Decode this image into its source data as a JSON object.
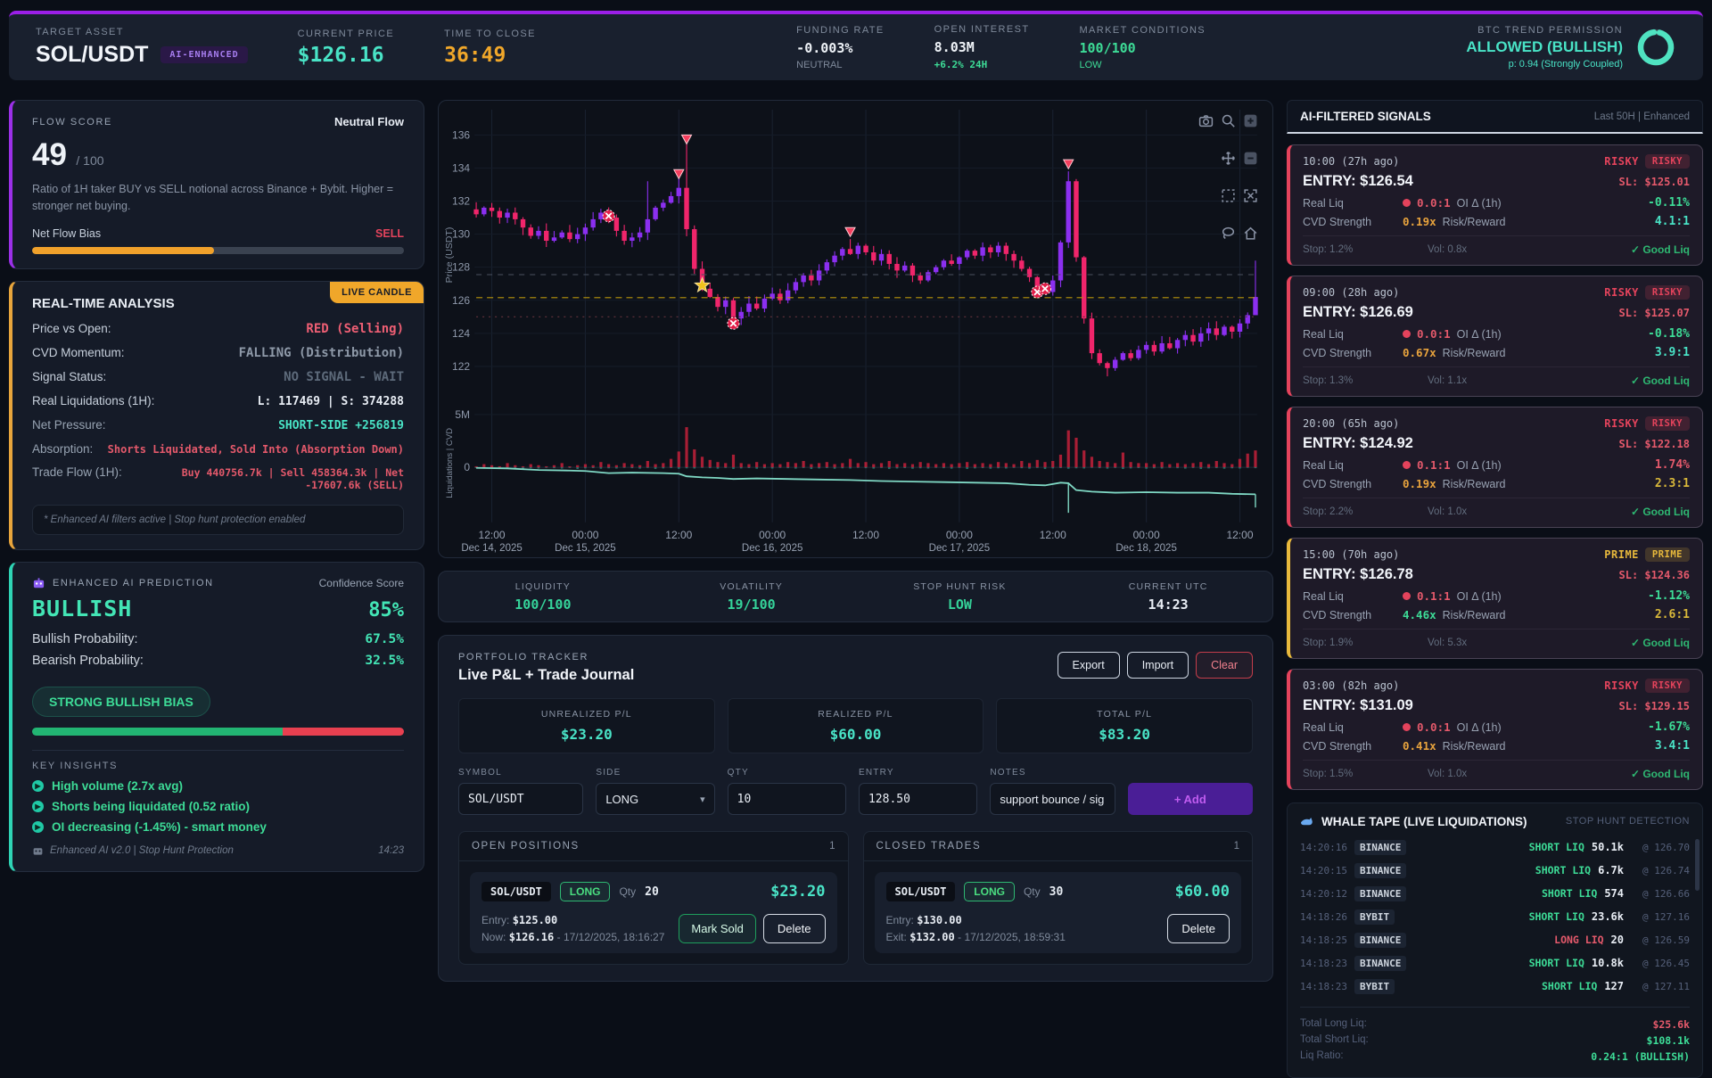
{
  "header": {
    "target": {
      "label": "TARGET ASSET",
      "value": "SOL/USDT",
      "badge": "AI-ENHANCED"
    },
    "price": {
      "label": "CURRENT PRICE",
      "value": "$126.16"
    },
    "close_timer": {
      "label": "TIME TO CLOSE",
      "value": "36:49"
    },
    "funding": {
      "label": "FUNDING RATE",
      "value": "-0.003%",
      "sub": "NEUTRAL"
    },
    "oi": {
      "label": "OPEN INTEREST",
      "value": "8.03M",
      "sub": "+6.2% 24H"
    },
    "market": {
      "label": "MARKET CONDITIONS",
      "value": "100/100",
      "sub": "LOW"
    },
    "btc": {
      "label": "BTC TREND PERMISSION",
      "value": "ALLOWED (BULLISH)",
      "sub": "p: 0.94 (Strongly Coupled)",
      "gauge_pct": 94,
      "gauge_color": "#4fe3c1"
    }
  },
  "flow": {
    "title": "FLOW SCORE",
    "status": "Neutral Flow",
    "score": "49",
    "score_max": "/ 100",
    "desc": "Ratio of 1H taker BUY vs SELL notional across Binance + Bybit. Higher = stronger net buying.",
    "bias_label": "Net Flow Bias",
    "bias_value": "SELL",
    "bar_pct": 49,
    "bar_color": "#f0a12b"
  },
  "realtime": {
    "title": "REAL-TIME ANALYSIS",
    "badge": "LIVE CANDLE",
    "rows": [
      {
        "label": "Price vs Open:",
        "value": "RED (Selling)",
        "lc": "#c7d0dc",
        "vc": "#ef5f74",
        "fs": "14px"
      },
      {
        "label": "CVD Momentum:",
        "value": "FALLING (Distribution)",
        "lc": "#c7d0dc",
        "vc": "#8e99a8",
        "fs": "14px"
      },
      {
        "label": "Signal Status:",
        "value": "NO SIGNAL - WAIT",
        "lc": "#c7d0dc",
        "vc": "#5d6a7a",
        "fs": "14px"
      },
      {
        "label": "Real Liquidations (1H):",
        "value": "L: 117469 | S: 374288",
        "lc": "#c7d0dc",
        "vc": "#e8edf4",
        "fs": "13px"
      },
      {
        "label": "Net Pressure:",
        "value": "SHORT-SIDE +256819",
        "lc": "#97a3b2",
        "vc": "#49e3c6",
        "fs": "13px"
      },
      {
        "label": "Absorption:",
        "value": "Shorts Liquidated, Sold Into (Absorption Down)",
        "lc": "#97a3b2",
        "vc": "#e4596b",
        "fs": "12px"
      },
      {
        "label": "Trade Flow (1H):",
        "value": "Buy 440756.7k | Sell 458364.3k | Net -17607.6k (SELL)",
        "lc": "#97a3b2",
        "vc": "#e4596b",
        "fs": "11.5px"
      }
    ],
    "footnote": "* Enhanced AI filters active | Stop hunt protection enabled"
  },
  "prediction": {
    "title": "ENHANCED AI PREDICTION",
    "conf_label": "Confidence Score",
    "direction": "BULLISH",
    "confidence": "85%",
    "probs": [
      {
        "label": "Bullish Probability:",
        "value": "67.5%"
      },
      {
        "label": "Bearish Probability:",
        "value": "32.5%"
      }
    ],
    "pill": "STRONG BULLISH BIAS",
    "bull_pct": 67.5,
    "insights_title": "KEY INSIGHTS",
    "insights": [
      {
        "text": "High volume (2.7x avg)"
      },
      {
        "text": "Shorts being liquidated (0.52 ratio)"
      },
      {
        "text": "OI decreasing (-1.45%) - smart money"
      }
    ],
    "footer": "Enhanced AI v2.0 | Stop Hunt Protection",
    "time": "14:23"
  },
  "stats": {
    "items": [
      {
        "label": "LIQUIDITY",
        "value": "100/100",
        "color": "#35d49a"
      },
      {
        "label": "VOLATILITY",
        "value": "19/100",
        "color": "#35d49a"
      },
      {
        "label": "STOP HUNT RISK",
        "value": "LOW",
        "color": "#35d49a"
      },
      {
        "label": "CURRENT UTC",
        "value": "14:23",
        "color": "#e8edf4"
      }
    ]
  },
  "portfolio": {
    "kicker": "PORTFOLIO TRACKER",
    "title": "Live P&L + Trade Journal",
    "buttons": {
      "export": "Export",
      "import": "Import",
      "clear": "Clear"
    },
    "pl_boxes": [
      {
        "label": "UNREALIZED P/L",
        "value": "$23.20"
      },
      {
        "label": "REALIZED P/L",
        "value": "$60.00"
      },
      {
        "label": "TOTAL P/L",
        "value": "$83.20"
      }
    ],
    "form": {
      "symbol_label": "SYMBOL",
      "symbol": "SOL/USDT",
      "side_label": "SIDE",
      "side": "LONG",
      "qty_label": "QTY",
      "qty": "10",
      "entry_label": "ENTRY",
      "entry": "128.50",
      "notes_label": "NOTES",
      "notes": "support bounce / sig",
      "add": "+ Add"
    },
    "open": {
      "title": "OPEN POSITIONS",
      "count": "1",
      "symbol": "SOL/USDT",
      "side": "LONG",
      "qty_label": "Qty",
      "qty": "20",
      "pnl": "$23.20",
      "entry_label": "Entry:",
      "entry": "$125.00",
      "now_label": "Now:",
      "now": "$126.16",
      "meta": "- 17/12/2025, 18:16:27",
      "mark_sold": "Mark Sold",
      "delete": "Delete"
    },
    "closed": {
      "title": "CLOSED TRADES",
      "count": "1",
      "symbol": "SOL/USDT",
      "side": "LONG",
      "qty_label": "Qty",
      "qty": "30",
      "pnl": "$60.00",
      "entry_label": "Entry:",
      "entry": "$130.00",
      "exit_label": "Exit:",
      "exit": "$132.00",
      "meta": "- 17/12/2025, 18:59:31",
      "delete": "Delete"
    }
  },
  "signals": {
    "title": "AI-FILTERED SIGNALS",
    "range": "Last 50H | Enhanced",
    "labels": {
      "real_liq": "Real Liq",
      "oi": "OI Δ (1h)",
      "cvd": "CVD Strength",
      "rr": "Risk/Reward"
    },
    "cards": [
      {
        "time": "10:00 (27h ago)",
        "tier": "RISKY",
        "tier_color": "#e4435c",
        "tier_bg": "rgba(228,67,92,0.18)",
        "accent": "#e4435c",
        "entry": "ENTRY: $126.54",
        "sl": "SL: $125.01",
        "rl": "0.0:1",
        "rl_color": "#e4596b",
        "oi": "-0.11%",
        "oi_color": "#3ddc97",
        "cvd": "0.19x",
        "cvd_color": "#e8a33d",
        "rr": "4.1:1",
        "rr_color": "#49e3c6",
        "stop": "Stop: 1.2%",
        "vol": "Vol: 0.8x",
        "liq": "✓ Good Liq"
      },
      {
        "time": "09:00 (28h ago)",
        "tier": "RISKY",
        "tier_color": "#e4435c",
        "tier_bg": "rgba(228,67,92,0.18)",
        "accent": "#e4435c",
        "entry": "ENTRY: $126.69",
        "sl": "SL: $125.07",
        "rl": "0.0:1",
        "rl_color": "#e4596b",
        "oi": "-0.18%",
        "oi_color": "#3ddc97",
        "cvd": "0.67x",
        "cvd_color": "#e8a33d",
        "rr": "3.9:1",
        "rr_color": "#49e3c6",
        "stop": "Stop: 1.3%",
        "vol": "Vol: 1.1x",
        "liq": "✓ Good Liq"
      },
      {
        "time": "20:00 (65h ago)",
        "tier": "RISKY",
        "tier_color": "#e4435c",
        "tier_bg": "rgba(228,67,92,0.18)",
        "accent": "#e4435c",
        "entry": "ENTRY: $124.92",
        "sl": "SL: $122.18",
        "rl": "0.1:1",
        "rl_color": "#e4596b",
        "oi": "1.74%",
        "oi_color": "#e4596b",
        "cvd": "0.19x",
        "cvd_color": "#e8a33d",
        "rr": "2.3:1",
        "rr_color": "#d9b83a",
        "stop": "Stop: 2.2%",
        "vol": "Vol: 1.0x",
        "liq": "✓ Good Liq"
      },
      {
        "time": "15:00 (70h ago)",
        "tier": "PRIME",
        "tier_color": "#e8b93c",
        "tier_bg": "rgba(232,185,60,0.18)",
        "accent": "#e8b93c",
        "entry": "ENTRY: $126.78",
        "sl": "SL: $124.36",
        "rl": "0.1:1",
        "rl_color": "#e4596b",
        "oi": "-1.12%",
        "oi_color": "#3ddc97",
        "cvd": "4.46x",
        "cvd_color": "#3ddc97",
        "rr": "2.6:1",
        "rr_color": "#d9b83a",
        "stop": "Stop: 1.9%",
        "vol": "Vol: 5.3x",
        "liq": "✓ Good Liq"
      },
      {
        "time": "03:00 (82h ago)",
        "tier": "RISKY",
        "tier_color": "#e4435c",
        "tier_bg": "rgba(228,67,92,0.18)",
        "accent": "#e4435c",
        "entry": "ENTRY: $131.09",
        "sl": "SL: $129.15",
        "rl": "0.0:1",
        "rl_color": "#e4596b",
        "oi": "-1.67%",
        "oi_color": "#3ddc97",
        "cvd": "0.41x",
        "cvd_color": "#e8a33d",
        "rr": "3.4:1",
        "rr_color": "#49e3c6",
        "stop": "Stop: 1.5%",
        "vol": "Vol: 1.0x",
        "liq": "✓ Good Liq"
      }
    ]
  },
  "whale": {
    "title": "WHALE TAPE (LIVE LIQUIDATIONS)",
    "right": "STOP HUNT DETECTION",
    "rows": [
      {
        "t": "14:20:16",
        "ex": "BINANCE",
        "side": "SHORT LIQ",
        "qty": "50.1k",
        "at": "@ 126.70",
        "sc": "#3ddc97"
      },
      {
        "t": "14:20:15",
        "ex": "BINANCE",
        "side": "SHORT LIQ",
        "qty": "6.7k",
        "at": "@ 126.74",
        "sc": "#3ddc97"
      },
      {
        "t": "14:20:12",
        "ex": "BINANCE",
        "side": "SHORT LIQ",
        "qty": "574",
        "at": "@ 126.66",
        "sc": "#3ddc97"
      },
      {
        "t": "14:18:26",
        "ex": "BYBIT",
        "side": "SHORT LIQ",
        "qty": "23.6k",
        "at": "@ 127.16",
        "sc": "#3ddc97"
      },
      {
        "t": "14:18:25",
        "ex": "BINANCE",
        "side": "LONG LIQ",
        "qty": "20",
        "at": "@ 126.59",
        "sc": "#e4596b"
      },
      {
        "t": "14:18:23",
        "ex": "BINANCE",
        "side": "SHORT LIQ",
        "qty": "10.8k",
        "at": "@ 126.45",
        "sc": "#3ddc97"
      },
      {
        "t": "14:18:23",
        "ex": "BYBIT",
        "side": "SHORT LIQ",
        "qty": "127",
        "at": "@ 127.11",
        "sc": "#3ddc97"
      }
    ],
    "totals": [
      {
        "label": "Total Long Liq:",
        "value": "$25.6k",
        "color": "#e4596b"
      },
      {
        "label": "Total Short Liq:",
        "value": "$108.1k",
        "color": "#3ddc97"
      },
      {
        "label": "Liq Ratio:",
        "value": "0.24:1 (BULLISH)",
        "color": "#3ddc97"
      }
    ]
  },
  "chart_data": {
    "type": "candlestick",
    "ylabel": "Price (USDT)",
    "y2label": "Liquidations | CVD",
    "y_ticks": [
      122,
      124,
      126,
      128,
      130,
      132,
      134,
      136
    ],
    "y2_ticks": [
      "0",
      "5M"
    ],
    "price_range": [
      120.6,
      137.2
    ],
    "y2_range": [
      -5.2,
      6.0
    ],
    "up_color": "#8b2ff0",
    "down_color": "#f0256b",
    "cvd_color": "#7fd8c4",
    "liq_color": "#b92039",
    "x_tick_labels": [
      "12:00",
      "00:00",
      "12:00",
      "00:00",
      "12:00",
      "00:00",
      "12:00",
      "00:00",
      "12:00"
    ],
    "x_tick_indices": [
      2,
      14,
      26,
      38,
      50,
      62,
      74,
      86,
      98
    ],
    "date_labels": [
      {
        "text": "Dec 14, 2025",
        "i": 2
      },
      {
        "text": "Dec 15, 2025",
        "i": 14
      },
      {
        "text": "Dec 16, 2025",
        "i": 38
      },
      {
        "text": "Dec 17, 2025",
        "i": 62
      },
      {
        "text": "Dec 18, 2025",
        "i": 86
      }
    ],
    "closes": [
      131.2,
      131.6,
      131.4,
      131.0,
      131.3,
      130.9,
      130.4,
      129.9,
      130.2,
      129.6,
      129.8,
      130.1,
      129.7,
      130.0,
      130.4,
      130.9,
      131.3,
      131.0,
      130.2,
      129.6,
      129.8,
      130.1,
      130.9,
      131.6,
      131.9,
      132.3,
      132.8,
      130.3,
      127.9,
      126.7,
      126.2,
      125.6,
      126.0,
      124.9,
      125.3,
      125.8,
      125.5,
      126.1,
      126.4,
      126.0,
      126.6,
      127.1,
      127.5,
      127.2,
      127.8,
      128.3,
      128.7,
      129.1,
      128.8,
      129.3,
      128.9,
      128.4,
      128.8,
      128.2,
      127.8,
      128.1,
      127.5,
      127.2,
      127.7,
      128.0,
      128.4,
      128.2,
      128.6,
      129.0,
      128.7,
      129.2,
      128.9,
      129.3,
      128.8,
      128.4,
      127.9,
      127.4,
      126.8,
      126.5,
      127.2,
      129.5,
      133.2,
      128.6,
      124.9,
      122.8,
      122.2,
      121.9,
      122.4,
      122.8,
      122.5,
      123.0,
      123.3,
      122.9,
      123.4,
      123.1,
      123.6,
      123.9,
      123.5,
      124.0,
      124.3,
      123.9,
      124.4,
      124.1,
      124.6,
      125.1,
      126.2
    ],
    "wick_overrides": {
      "22": [
        133.2,
        null
      ],
      "26": [
        133.6,
        null
      ],
      "27": [
        135.5,
        null
      ],
      "33": [
        null,
        124.4
      ],
      "48": [
        129.7,
        null
      ],
      "76": [
        133.8,
        null
      ],
      "81": [
        null,
        121.4
      ],
      "100": [
        128.4,
        125.3
      ]
    },
    "markers": [
      {
        "i": 17,
        "p": 131.1,
        "t": "x"
      },
      {
        "i": 26,
        "p": 133.6,
        "t": "tri"
      },
      {
        "i": 27,
        "p": 135.7,
        "t": "tri"
      },
      {
        "i": 29,
        "p": 126.9,
        "t": "star"
      },
      {
        "i": 33,
        "p": 124.6,
        "t": "x"
      },
      {
        "i": 48,
        "p": 130.1,
        "t": "tri"
      },
      {
        "i": 72,
        "p": 126.5,
        "t": "x"
      },
      {
        "i": 73,
        "p": 126.7,
        "t": "x"
      },
      {
        "i": 76,
        "p": 134.2,
        "t": "tri"
      }
    ],
    "levels": [
      {
        "price": 126.16,
        "color": "#b8960c",
        "dash": "7 5",
        "width": 1.2
      },
      {
        "price": 127.55,
        "color": "#4a5160",
        "dash": "6 6",
        "width": 1
      },
      {
        "price": 125.0,
        "color": "#66323c",
        "dash": "2 5",
        "width": 1
      }
    ],
    "liq_up": [
      0.1,
      0.3,
      0.2,
      0.1,
      0.4,
      0.2,
      0.1,
      0.3,
      0.2,
      0.1,
      0.2,
      0.4,
      0.1,
      0.2,
      0.3,
      0.2,
      0.5,
      0.3,
      0.2,
      0.4,
      0.3,
      0.2,
      0.6,
      0.3,
      0.4,
      0.8,
      1.5,
      3.8,
      1.7,
      1.0,
      0.7,
      0.5,
      0.4,
      1.2,
      0.4,
      0.3,
      0.5,
      0.3,
      0.4,
      0.3,
      0.5,
      0.4,
      0.6,
      0.3,
      0.4,
      0.5,
      0.3,
      0.4,
      0.8,
      0.4,
      0.5,
      0.3,
      0.4,
      0.6,
      0.3,
      0.4,
      0.3,
      0.5,
      0.4,
      0.3,
      0.4,
      0.3,
      0.4,
      0.5,
      0.3,
      0.4,
      0.3,
      0.5,
      0.4,
      0.3,
      0.6,
      0.4,
      0.7,
      0.5,
      0.6,
      1.2,
      3.5,
      2.8,
      1.6,
      1.0,
      0.6,
      0.5,
      0.4,
      1.4,
      0.5,
      0.4,
      0.4,
      0.3,
      0.5,
      0.3,
      0.4,
      0.3,
      0.4,
      0.5,
      0.3,
      0.6,
      0.4,
      0.3,
      0.8,
      1.3,
      1.6
    ],
    "liq_down_pattern": [
      0.08,
      0.12,
      0.06,
      0.15,
      0.1,
      0.07,
      0.13,
      0.09,
      0.11,
      0.05
    ],
    "cvd_points": [
      [
        0,
        -0.05
      ],
      [
        4,
        -0.1
      ],
      [
        8,
        -0.25
      ],
      [
        12,
        -0.3
      ],
      [
        14,
        -0.35
      ],
      [
        17,
        -0.55
      ],
      [
        20,
        -0.5
      ],
      [
        24,
        -0.55
      ],
      [
        26,
        -0.6
      ],
      [
        27,
        -0.85
      ],
      [
        29,
        -0.95
      ],
      [
        31,
        -1.0
      ],
      [
        33,
        -1.1
      ],
      [
        36,
        -1.05
      ],
      [
        40,
        -1.1
      ],
      [
        44,
        -1.15
      ],
      [
        48,
        -1.2
      ],
      [
        52,
        -1.3
      ],
      [
        56,
        -1.35
      ],
      [
        60,
        -1.4
      ],
      [
        64,
        -1.45
      ],
      [
        68,
        -1.5
      ],
      [
        71,
        -1.65
      ],
      [
        73,
        -1.7
      ],
      [
        75,
        -1.45
      ],
      [
        76,
        -1.5
      ],
      [
        77,
        -2.15
      ],
      [
        79,
        -2.3
      ],
      [
        82,
        -2.4
      ],
      [
        86,
        -2.35
      ],
      [
        90,
        -2.4
      ],
      [
        94,
        -2.4
      ],
      [
        97,
        -2.5
      ],
      [
        100,
        -2.55
      ]
    ],
    "cvd_spikes": [
      [
        76,
        -4.3
      ],
      [
        100,
        -3.8
      ]
    ],
    "toolbar_rows": [
      [
        "camera",
        "zoom",
        "zoom-in"
      ],
      [
        "pan",
        "zoom-out"
      ],
      [
        "box-select",
        "autoscale"
      ],
      [
        "lasso",
        "home"
      ]
    ]
  }
}
